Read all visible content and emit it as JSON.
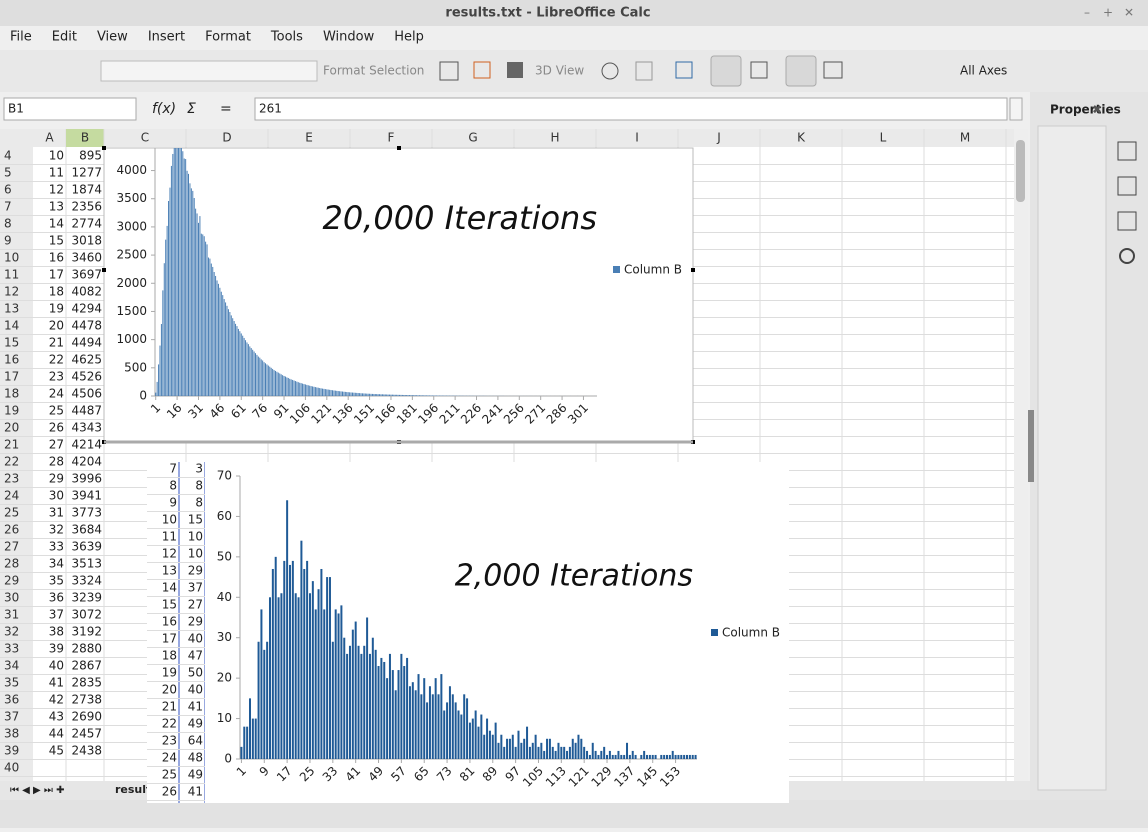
{
  "window_title": "results.txt - LibreOffice Calc",
  "menu": [
    "File",
    "Edit",
    "View",
    "Insert",
    "Format",
    "Tools",
    "Window",
    "Help"
  ],
  "toolbar": {
    "format_selection": "Format Selection",
    "view_3d": "3D View",
    "all_axes": "All Axes"
  },
  "name_box": "B1",
  "formula_icons": [
    "f(x)",
    "Σ",
    "="
  ],
  "formula": "261",
  "sidebar_title": "Properties",
  "columns": [
    "A",
    "B",
    "C",
    "D",
    "E",
    "F",
    "G",
    "H",
    "I",
    "J",
    "K",
    "L",
    "M"
  ],
  "rows": [
    4,
    5,
    6,
    7,
    8,
    9,
    10,
    11,
    12,
    13,
    14,
    15,
    16,
    17,
    18,
    19,
    20,
    21,
    22,
    23,
    24,
    25,
    26,
    27,
    28,
    29,
    30,
    31,
    32,
    33,
    34,
    35,
    36,
    37,
    38,
    39,
    40
  ],
  "cells": [
    [
      10,
      895
    ],
    [
      11,
      1277
    ],
    [
      12,
      1874
    ],
    [
      13,
      2356
    ],
    [
      14,
      2774
    ],
    [
      15,
      3018
    ],
    [
      16,
      3460
    ],
    [
      17,
      3697
    ],
    [
      18,
      4082
    ],
    [
      19,
      4294
    ],
    [
      20,
      4478
    ],
    [
      21,
      4494
    ],
    [
      22,
      4625
    ],
    [
      23,
      4526
    ],
    [
      24,
      4506
    ],
    [
      25,
      4487
    ],
    [
      26,
      4343
    ],
    [
      27,
      4214
    ],
    [
      28,
      4204
    ],
    [
      29,
      3996
    ],
    [
      30,
      3941
    ],
    [
      31,
      3773
    ],
    [
      32,
      3684
    ],
    [
      33,
      3639
    ],
    [
      34,
      3513
    ],
    [
      35,
      3324
    ],
    [
      36,
      3239
    ],
    [
      37,
      3072
    ],
    [
      38,
      3192
    ],
    [
      39,
      2880
    ],
    [
      40,
      2867
    ],
    [
      41,
      2835
    ],
    [
      42,
      2738
    ],
    [
      43,
      2690
    ],
    [
      44,
      2457
    ],
    [
      45,
      2438
    ]
  ],
  "sheet_tab": "result",
  "embedded": {
    "rows": [
      7,
      8,
      9,
      10,
      11,
      12,
      13,
      14,
      15,
      16,
      17,
      18,
      19,
      20,
      21,
      22,
      23,
      24,
      25,
      26
    ],
    "values": [
      3,
      8,
      8,
      15,
      10,
      10,
      29,
      37,
      27,
      29,
      40,
      47,
      50,
      40,
      41,
      49,
      64,
      48,
      49,
      41
    ]
  },
  "chart_data": [
    {
      "type": "bar",
      "title": "20,000 Iterations",
      "series": [
        {
          "name": "Column B",
          "color": "#4a7fb5",
          "values": [
            60,
            250,
            560,
            895,
            1277,
            1874,
            2356,
            2774,
            3018,
            3460,
            3697,
            4082,
            4294,
            4478,
            4494,
            4625,
            4526,
            4506,
            4487,
            4343,
            4214,
            4204,
            3996,
            3941,
            3773,
            3684,
            3639,
            3513,
            3324,
            3239,
            3072,
            3192,
            2880,
            2867,
            2835,
            2738,
            2690,
            2457,
            2438,
            2350,
            2290,
            2200,
            2130,
            2050,
            1990,
            1920,
            1850,
            1790,
            1720,
            1660,
            1600,
            1540,
            1490,
            1430,
            1380,
            1330,
            1280,
            1240,
            1190,
            1150,
            1110,
            1070,
            1030,
            990,
            950,
            920,
            880,
            850,
            820,
            790,
            760,
            730,
            700,
            680,
            650,
            630,
            600,
            580,
            560,
            540,
            520,
            500,
            480,
            460,
            445,
            430,
            415,
            400,
            385,
            370,
            355,
            345,
            330,
            320,
            305,
            295,
            285,
            275,
            265,
            255,
            245,
            235,
            228,
            220,
            212,
            205,
            197,
            190,
            183,
            176,
            170,
            164,
            158,
            152,
            147,
            141,
            136,
            131,
            127,
            122,
            118,
            114,
            110,
            106,
            102,
            98,
            95,
            91,
            88,
            85,
            82,
            79,
            76,
            73,
            70,
            68,
            65,
            63,
            61,
            59,
            57,
            55,
            53,
            51,
            49,
            47,
            46,
            44,
            42,
            41,
            40,
            38,
            37,
            36,
            35,
            34,
            33,
            32,
            31,
            30,
            29,
            28,
            27,
            26,
            25,
            25,
            24,
            23,
            22,
            22,
            21,
            20,
            20,
            19,
            18,
            18,
            17,
            17,
            16,
            16,
            15,
            15,
            14,
            14,
            13,
            13,
            13,
            12,
            12,
            11,
            11,
            11,
            10,
            10,
            10,
            9,
            9,
            9,
            8,
            8,
            8,
            8,
            7,
            7,
            7,
            7,
            6,
            6,
            6,
            6,
            6,
            5,
            5,
            5,
            5,
            5,
            4,
            4,
            4,
            4,
            4,
            4,
            4,
            3,
            3,
            3,
            3,
            3,
            3,
            3,
            3,
            3,
            2,
            2,
            2,
            2,
            2,
            2,
            2,
            2,
            2,
            2,
            2,
            2,
            2,
            1,
            1,
            1,
            1,
            1,
            1,
            1,
            1,
            1,
            1,
            1,
            1,
            1,
            1,
            1,
            1,
            1,
            1,
            1,
            1,
            0,
            1,
            1,
            0,
            1,
            1,
            0,
            1,
            0,
            1,
            0,
            0,
            1,
            0,
            0,
            1,
            0,
            0,
            1,
            0,
            0,
            0,
            1,
            0,
            0,
            0,
            1,
            0,
            0,
            0,
            0,
            1,
            0,
            0,
            0,
            0,
            0,
            1,
            0,
            0,
            0,
            0,
            0,
            1,
            0,
            0,
            0
          ]
        }
      ],
      "xlim": [
        1,
        310
      ],
      "xticks": [
        1,
        16,
        31,
        46,
        61,
        76,
        91,
        106,
        121,
        136,
        151,
        166,
        181,
        196,
        211,
        226,
        241,
        256,
        271,
        286,
        301
      ],
      "ylim": [
        0,
        4400
      ],
      "yticks": [
        0,
        500,
        1000,
        1500,
        2000,
        2500,
        3000,
        3500,
        4000
      ]
    },
    {
      "type": "bar",
      "title": "2,000 Iterations",
      "series": [
        {
          "name": "Column B",
          "color": "#1f5a96",
          "values": [
            3,
            8,
            8,
            15,
            10,
            10,
            29,
            37,
            27,
            29,
            40,
            47,
            50,
            40,
            41,
            49,
            64,
            48,
            49,
            41,
            40,
            54,
            47,
            49,
            41,
            44,
            37,
            42,
            47,
            37,
            45,
            45,
            29,
            37,
            36,
            38,
            30,
            26,
            28,
            32,
            34,
            28,
            26,
            28,
            35,
            26,
            30,
            27,
            23,
            25,
            24,
            20,
            26,
            22,
            17,
            22,
            26,
            23,
            25,
            18,
            19,
            17,
            21,
            16,
            20,
            14,
            18,
            16,
            20,
            16,
            21,
            12,
            14,
            18,
            16,
            14,
            12,
            11,
            16,
            15,
            9,
            10,
            12,
            8,
            11,
            6,
            10,
            7,
            6,
            9,
            4,
            6,
            3,
            5,
            5,
            6,
            3,
            7,
            4,
            5,
            8,
            3,
            4,
            6,
            3,
            4,
            2,
            5,
            5,
            3,
            2,
            4,
            3,
            3,
            2,
            3,
            5,
            4,
            6,
            5,
            3,
            2,
            1,
            4,
            2,
            1,
            2,
            3,
            1,
            2,
            1,
            1,
            2,
            1,
            1,
            4,
            1,
            2,
            1,
            0,
            1,
            2,
            1,
            1,
            1,
            1,
            0,
            1,
            1,
            1,
            1,
            2,
            1,
            1,
            1,
            1,
            1,
            1,
            1,
            1
          ]
        }
      ],
      "xlim": [
        1,
        160
      ],
      "xticks": [
        1,
        9,
        17,
        25,
        33,
        41,
        49,
        57,
        65,
        73,
        81,
        89,
        97,
        105,
        113,
        121,
        129,
        137,
        145,
        153
      ],
      "ylim": [
        0,
        70
      ],
      "yticks": [
        0,
        10,
        20,
        30,
        40,
        50,
        60,
        70
      ]
    }
  ]
}
